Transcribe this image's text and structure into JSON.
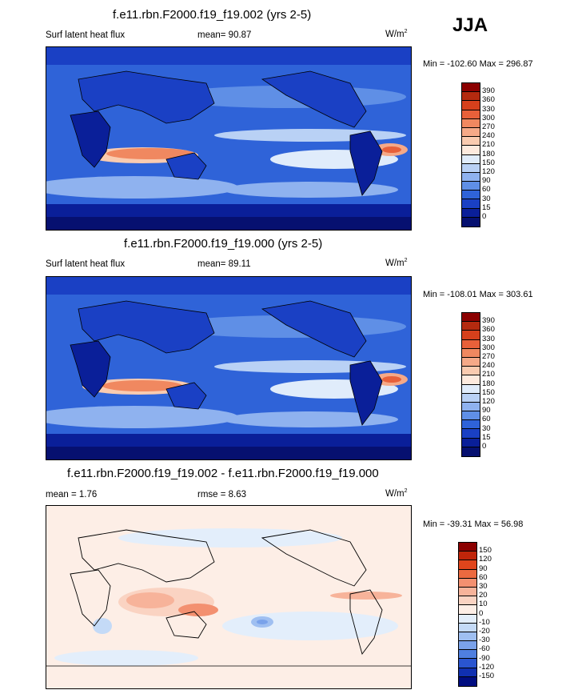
{
  "season": "JJA",
  "panels": [
    {
      "title": "f.e11.rbn.F2000.f19_f19.002 (yrs 2-5)",
      "left_label": "Surf latent heat flux",
      "mean_label": "mean=  90.87",
      "units": "W/m",
      "units_sup": "2",
      "minmax": "Min = -102.60 Max = 296.87",
      "colorbar": {
        "labels": [
          "390",
          "360",
          "330",
          "300",
          "270",
          "240",
          "210",
          "180",
          "150",
          "120",
          "90",
          "60",
          "30",
          "15",
          "0"
        ],
        "colors": [
          "#8b0000",
          "#b42a0f",
          "#d6401c",
          "#e8603a",
          "#f08860",
          "#f5a988",
          "#f9cbb0",
          "#fdeade",
          "#e0ecfb",
          "#b9d1f5",
          "#8fb2ef",
          "#5f8fe6",
          "#2f63d8",
          "#1a40c4",
          "#0a1f99",
          "#061070"
        ]
      }
    },
    {
      "title": "f.e11.rbn.F2000.f19_f19.000 (yrs 2-5)",
      "left_label": "Surf latent heat flux",
      "mean_label": "mean=  89.11",
      "units": "W/m",
      "units_sup": "2",
      "minmax": "Min = -108.01 Max = 303.61",
      "colorbar": {
        "labels": [
          "390",
          "360",
          "330",
          "300",
          "270",
          "240",
          "210",
          "180",
          "150",
          "120",
          "90",
          "60",
          "30",
          "15",
          "0"
        ],
        "colors": [
          "#8b0000",
          "#b42a0f",
          "#d6401c",
          "#e8603a",
          "#f08860",
          "#f5a988",
          "#f9cbb0",
          "#fdeade",
          "#e0ecfb",
          "#b9d1f5",
          "#8fb2ef",
          "#5f8fe6",
          "#2f63d8",
          "#1a40c4",
          "#0a1f99",
          "#061070"
        ]
      }
    },
    {
      "title": "f.e11.rbn.F2000.f19_f19.002 - f.e11.rbn.F2000.f19_f19.000",
      "left_label": "mean =   1.76",
      "mean_label": "rmse =   8.63",
      "units": "W/m",
      "units_sup": "2",
      "minmax": "Min = -39.31 Max =  56.98",
      "colorbar": {
        "labels": [
          "150",
          "120",
          "90",
          "60",
          "30",
          "20",
          "10",
          "0",
          "-10",
          "-20",
          "-30",
          "-60",
          "-90",
          "-120",
          "-150"
        ],
        "colors": [
          "#8b0000",
          "#c0250a",
          "#e0451c",
          "#ec6a40",
          "#f39070",
          "#f7b39a",
          "#fad3c2",
          "#fdeee6",
          "#e3eefb",
          "#c4daf7",
          "#9fbff1",
          "#7aa2ea",
          "#4f7fe0",
          "#2a55d0",
          "#1030b0",
          "#000d80"
        ]
      }
    }
  ]
}
